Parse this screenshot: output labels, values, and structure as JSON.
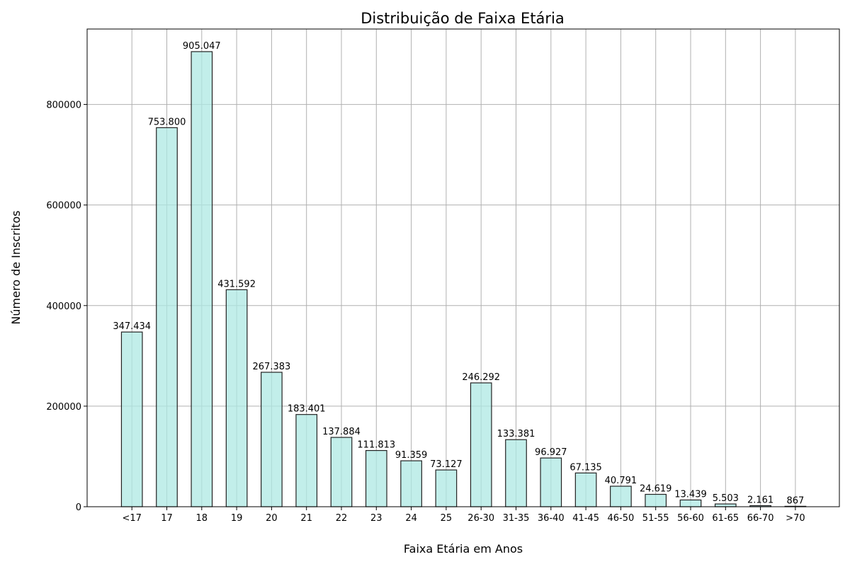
{
  "chart_data": {
    "type": "bar",
    "title": "Distribuição de Faixa Etária",
    "xlabel": "Faixa Etária em Anos",
    "ylabel": "Número de Inscritos",
    "ylim": [
      0,
      950000
    ],
    "yticks": [
      0,
      200000,
      400000,
      600000,
      800000
    ],
    "ytick_labels": [
      "0",
      "200000",
      "400000",
      "600000",
      "800000"
    ],
    "grid": true,
    "bar_color": "#aee8e3",
    "edge_color": "#222222",
    "categories": [
      "<17",
      "17",
      "18",
      "19",
      "20",
      "21",
      "22",
      "23",
      "24",
      "25",
      "26-30",
      "31-35",
      "36-40",
      "41-45",
      "46-50",
      "51-55",
      "56-60",
      "61-65",
      "66-70",
      ">70"
    ],
    "values": [
      347434,
      753800,
      905047,
      431592,
      267383,
      183401,
      137884,
      111813,
      91359,
      73127,
      246292,
      133381,
      96927,
      67135,
      40791,
      24619,
      13439,
      5503,
      2161,
      867
    ],
    "value_labels": [
      "347.434",
      "753.800",
      "905.047",
      "431.592",
      "267.383",
      "183.401",
      "137.884",
      "111.813",
      "91.359",
      "73.127",
      "246.292",
      "133.381",
      "96.927",
      "67.135",
      "40.791",
      "24.619",
      "13.439",
      "5.503",
      "2.161",
      "867"
    ]
  }
}
